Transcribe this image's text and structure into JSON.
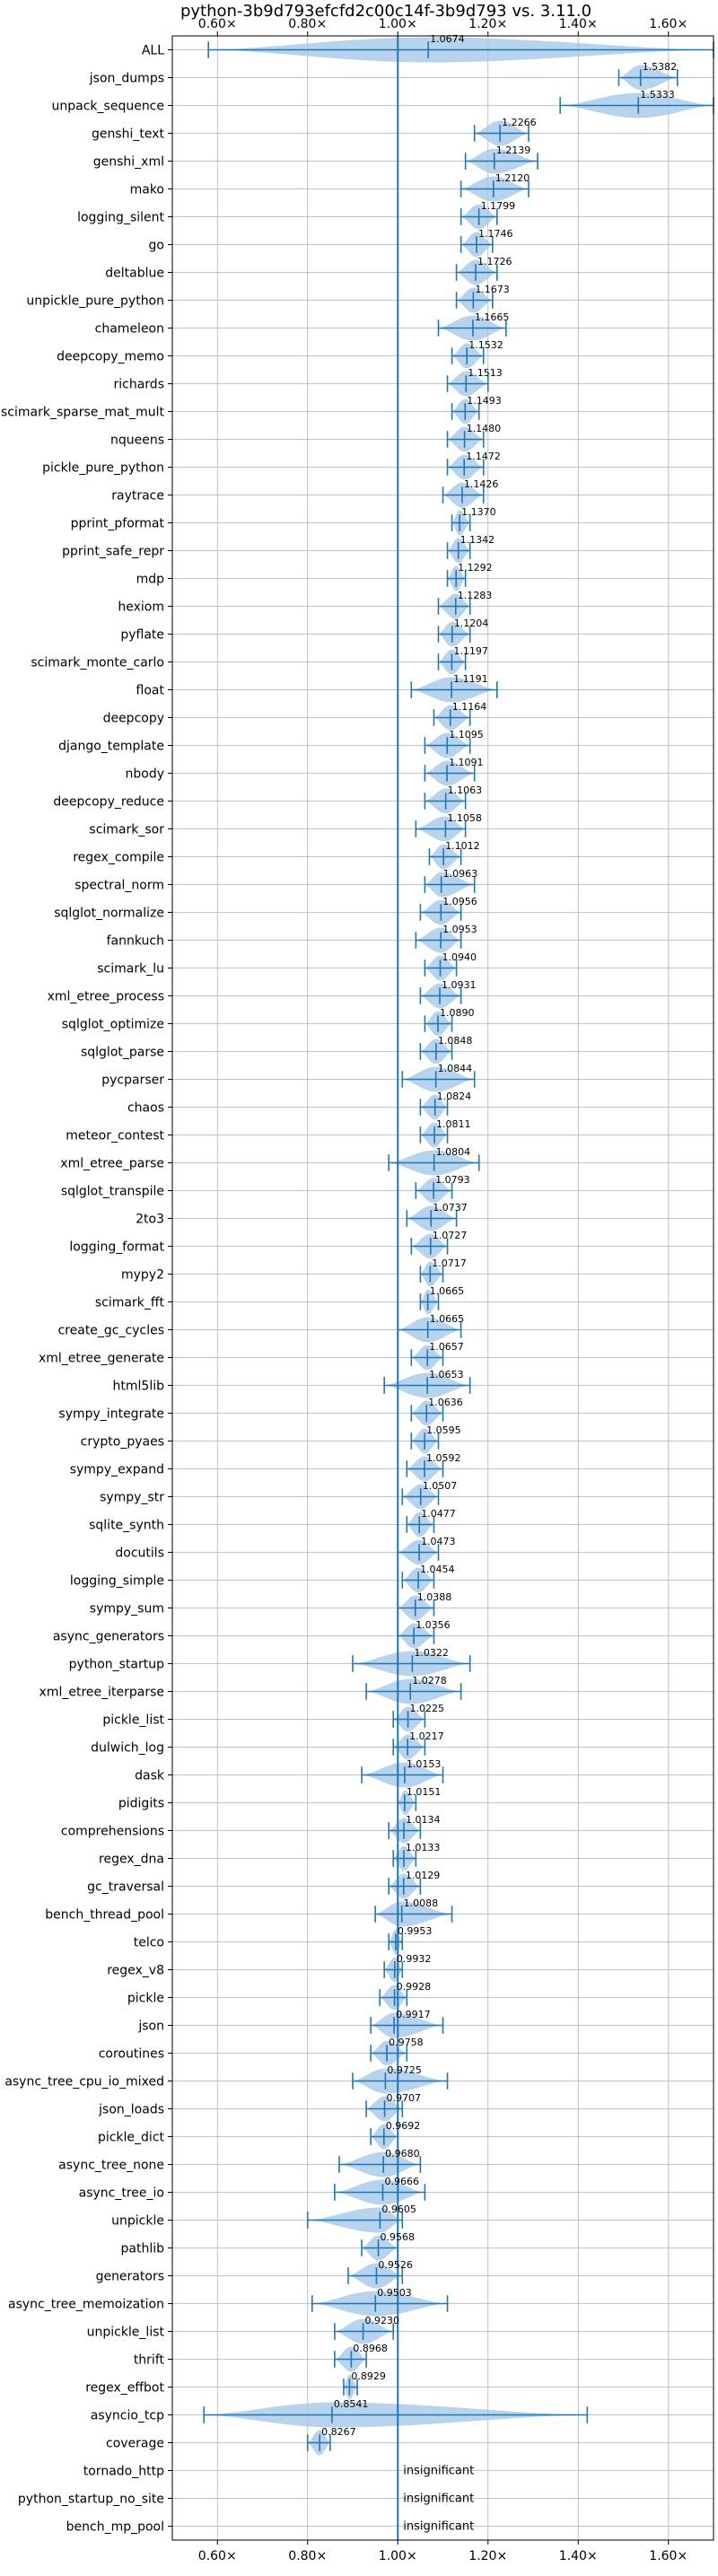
{
  "chart_data": {
    "type": "violin",
    "title": "python-3b9d793efcfd2c00c14f-3b9d793 vs. 3.11.0",
    "xlabel": "",
    "ylabel": "",
    "xlim": [
      0.5,
      1.7
    ],
    "x_ticks": [
      0.6,
      0.8,
      1.0,
      1.2,
      1.4,
      1.6
    ],
    "x_tick_labels": [
      "0.60×",
      "0.80×",
      "1.00×",
      "1.20×",
      "1.40×",
      "1.60×"
    ],
    "reference_line": 1.0,
    "grid": true,
    "color": "#1f77b4",
    "fill_color": "#a6c8e8",
    "benchmarks": [
      {
        "name": "ALL",
        "mean": 1.0674,
        "label": "1.0674",
        "min": 0.58,
        "max": 1.7
      },
      {
        "name": "json_dumps",
        "mean": 1.5382,
        "label": "1.5382",
        "min": 1.49,
        "max": 1.62
      },
      {
        "name": "unpack_sequence",
        "mean": 1.5333,
        "label": "1.5333",
        "min": 1.36,
        "max": 1.7
      },
      {
        "name": "genshi_text",
        "mean": 1.2266,
        "label": "1.2266",
        "min": 1.17,
        "max": 1.29
      },
      {
        "name": "genshi_xml",
        "mean": 1.2139,
        "label": "1.2139",
        "min": 1.15,
        "max": 1.31
      },
      {
        "name": "mako",
        "mean": 1.212,
        "label": "1.2120",
        "min": 1.14,
        "max": 1.29
      },
      {
        "name": "logging_silent",
        "mean": 1.1799,
        "label": "1.1799",
        "min": 1.14,
        "max": 1.22
      },
      {
        "name": "go",
        "mean": 1.1746,
        "label": "1.1746",
        "min": 1.14,
        "max": 1.21
      },
      {
        "name": "deltablue",
        "mean": 1.1726,
        "label": "1.1726",
        "min": 1.13,
        "max": 1.22
      },
      {
        "name": "unpickle_pure_python",
        "mean": 1.1673,
        "label": "1.1673",
        "min": 1.13,
        "max": 1.21
      },
      {
        "name": "chameleon",
        "mean": 1.1665,
        "label": "1.1665",
        "min": 1.09,
        "max": 1.24
      },
      {
        "name": "deepcopy_memo",
        "mean": 1.1532,
        "label": "1.1532",
        "min": 1.12,
        "max": 1.19
      },
      {
        "name": "richards",
        "mean": 1.1513,
        "label": "1.1513",
        "min": 1.11,
        "max": 1.2
      },
      {
        "name": "scimark_sparse_mat_mult",
        "mean": 1.1493,
        "label": "1.1493",
        "min": 1.12,
        "max": 1.18
      },
      {
        "name": "nqueens",
        "mean": 1.148,
        "label": "1.1480",
        "min": 1.11,
        "max": 1.19
      },
      {
        "name": "pickle_pure_python",
        "mean": 1.1472,
        "label": "1.1472",
        "min": 1.11,
        "max": 1.19
      },
      {
        "name": "raytrace",
        "mean": 1.1426,
        "label": "1.1426",
        "min": 1.1,
        "max": 1.19
      },
      {
        "name": "pprint_pformat",
        "mean": 1.137,
        "label": "1.1370",
        "min": 1.12,
        "max": 1.16
      },
      {
        "name": "pprint_safe_repr",
        "mean": 1.1342,
        "label": "1.1342",
        "min": 1.11,
        "max": 1.16
      },
      {
        "name": "mdp",
        "mean": 1.1292,
        "label": "1.1292",
        "min": 1.11,
        "max": 1.15
      },
      {
        "name": "hexiom",
        "mean": 1.1283,
        "label": "1.1283",
        "min": 1.09,
        "max": 1.16
      },
      {
        "name": "pyflate",
        "mean": 1.1204,
        "label": "1.1204",
        "min": 1.09,
        "max": 1.16
      },
      {
        "name": "scimark_monte_carlo",
        "mean": 1.1197,
        "label": "1.1197",
        "min": 1.09,
        "max": 1.15
      },
      {
        "name": "float",
        "mean": 1.1191,
        "label": "1.1191",
        "min": 1.03,
        "max": 1.22
      },
      {
        "name": "deepcopy",
        "mean": 1.1164,
        "label": "1.1164",
        "min": 1.08,
        "max": 1.16
      },
      {
        "name": "django_template",
        "mean": 1.1095,
        "label": "1.1095",
        "min": 1.06,
        "max": 1.16
      },
      {
        "name": "nbody",
        "mean": 1.1091,
        "label": "1.1091",
        "min": 1.06,
        "max": 1.17
      },
      {
        "name": "deepcopy_reduce",
        "mean": 1.1063,
        "label": "1.1063",
        "min": 1.06,
        "max": 1.15
      },
      {
        "name": "scimark_sor",
        "mean": 1.1058,
        "label": "1.1058",
        "min": 1.04,
        "max": 1.15
      },
      {
        "name": "regex_compile",
        "mean": 1.1012,
        "label": "1.1012",
        "min": 1.07,
        "max": 1.14
      },
      {
        "name": "spectral_norm",
        "mean": 1.0963,
        "label": "1.0963",
        "min": 1.06,
        "max": 1.17
      },
      {
        "name": "sqlglot_normalize",
        "mean": 1.0956,
        "label": "1.0956",
        "min": 1.05,
        "max": 1.14
      },
      {
        "name": "fannkuch",
        "mean": 1.0953,
        "label": "1.0953",
        "min": 1.04,
        "max": 1.14
      },
      {
        "name": "scimark_lu",
        "mean": 1.094,
        "label": "1.0940",
        "min": 1.06,
        "max": 1.13
      },
      {
        "name": "xml_etree_process",
        "mean": 1.0931,
        "label": "1.0931",
        "min": 1.05,
        "max": 1.14
      },
      {
        "name": "sqlglot_optimize",
        "mean": 1.089,
        "label": "1.0890",
        "min": 1.06,
        "max": 1.12
      },
      {
        "name": "sqlglot_parse",
        "mean": 1.0848,
        "label": "1.0848",
        "min": 1.05,
        "max": 1.12
      },
      {
        "name": "pycparser",
        "mean": 1.0844,
        "label": "1.0844",
        "min": 1.01,
        "max": 1.17
      },
      {
        "name": "chaos",
        "mean": 1.0824,
        "label": "1.0824",
        "min": 1.05,
        "max": 1.11
      },
      {
        "name": "meteor_contest",
        "mean": 1.0811,
        "label": "1.0811",
        "min": 1.05,
        "max": 1.11
      },
      {
        "name": "xml_etree_parse",
        "mean": 1.0804,
        "label": "1.0804",
        "min": 0.98,
        "max": 1.18
      },
      {
        "name": "sqlglot_transpile",
        "mean": 1.0793,
        "label": "1.0793",
        "min": 1.04,
        "max": 1.12
      },
      {
        "name": "2to3",
        "mean": 1.0737,
        "label": "1.0737",
        "min": 1.02,
        "max": 1.13
      },
      {
        "name": "logging_format",
        "mean": 1.0727,
        "label": "1.0727",
        "min": 1.03,
        "max": 1.11
      },
      {
        "name": "mypy2",
        "mean": 1.0717,
        "label": "1.0717",
        "min": 1.05,
        "max": 1.1
      },
      {
        "name": "scimark_fft",
        "mean": 1.0665,
        "label": "1.0665",
        "min": 1.05,
        "max": 1.09
      },
      {
        "name": "create_gc_cycles",
        "mean": 1.0665,
        "label": "1.0665",
        "min": 1.0,
        "max": 1.14
      },
      {
        "name": "xml_etree_generate",
        "mean": 1.0657,
        "label": "1.0657",
        "min": 1.03,
        "max": 1.1
      },
      {
        "name": "html5lib",
        "mean": 1.0653,
        "label": "1.0653",
        "min": 0.97,
        "max": 1.16
      },
      {
        "name": "sympy_integrate",
        "mean": 1.0636,
        "label": "1.0636",
        "min": 1.03,
        "max": 1.1
      },
      {
        "name": "crypto_pyaes",
        "mean": 1.0595,
        "label": "1.0595",
        "min": 1.03,
        "max": 1.09
      },
      {
        "name": "sympy_expand",
        "mean": 1.0592,
        "label": "1.0592",
        "min": 1.02,
        "max": 1.1
      },
      {
        "name": "sympy_str",
        "mean": 1.0507,
        "label": "1.0507",
        "min": 1.01,
        "max": 1.09
      },
      {
        "name": "sqlite_synth",
        "mean": 1.0477,
        "label": "1.0477",
        "min": 1.02,
        "max": 1.08
      },
      {
        "name": "docutils",
        "mean": 1.0473,
        "label": "1.0473",
        "min": 1.0,
        "max": 1.09
      },
      {
        "name": "logging_simple",
        "mean": 1.0454,
        "label": "1.0454",
        "min": 1.01,
        "max": 1.08
      },
      {
        "name": "sympy_sum",
        "mean": 1.0388,
        "label": "1.0388",
        "min": 1.0,
        "max": 1.08
      },
      {
        "name": "async_generators",
        "mean": 1.0356,
        "label": "1.0356",
        "min": 1.0,
        "max": 1.08
      },
      {
        "name": "python_startup",
        "mean": 1.0322,
        "label": "1.0322",
        "min": 0.9,
        "max": 1.16
      },
      {
        "name": "xml_etree_iterparse",
        "mean": 1.0278,
        "label": "1.0278",
        "min": 0.93,
        "max": 1.14
      },
      {
        "name": "pickle_list",
        "mean": 1.0225,
        "label": "1.0225",
        "min": 0.99,
        "max": 1.06
      },
      {
        "name": "dulwich_log",
        "mean": 1.0217,
        "label": "1.0217",
        "min": 0.99,
        "max": 1.06
      },
      {
        "name": "dask",
        "mean": 1.0153,
        "label": "1.0153",
        "min": 0.92,
        "max": 1.1
      },
      {
        "name": "pidigits",
        "mean": 1.0151,
        "label": "1.0151",
        "min": 1.0,
        "max": 1.04
      },
      {
        "name": "comprehensions",
        "mean": 1.0134,
        "label": "1.0134",
        "min": 0.98,
        "max": 1.05
      },
      {
        "name": "regex_dna",
        "mean": 1.0133,
        "label": "1.0133",
        "min": 0.99,
        "max": 1.04
      },
      {
        "name": "gc_traversal",
        "mean": 1.0129,
        "label": "1.0129",
        "min": 0.98,
        "max": 1.05
      },
      {
        "name": "bench_thread_pool",
        "mean": 1.0088,
        "label": "1.0088",
        "min": 0.95,
        "max": 1.12
      },
      {
        "name": "telco",
        "mean": 0.9953,
        "label": "0.9953",
        "min": 0.98,
        "max": 1.01
      },
      {
        "name": "regex_v8",
        "mean": 0.9932,
        "label": "0.9932",
        "min": 0.97,
        "max": 1.01
      },
      {
        "name": "pickle",
        "mean": 0.9928,
        "label": "0.9928",
        "min": 0.96,
        "max": 1.02
      },
      {
        "name": "json",
        "mean": 0.9917,
        "label": "0.9917",
        "min": 0.94,
        "max": 1.1
      },
      {
        "name": "coroutines",
        "mean": 0.9758,
        "label": "0.9758",
        "min": 0.94,
        "max": 1.02
      },
      {
        "name": "async_tree_cpu_io_mixed",
        "mean": 0.9725,
        "label": "0.9725",
        "min": 0.9,
        "max": 1.11
      },
      {
        "name": "json_loads",
        "mean": 0.9707,
        "label": "0.9707",
        "min": 0.93,
        "max": 1.01
      },
      {
        "name": "pickle_dict",
        "mean": 0.9692,
        "label": "0.9692",
        "min": 0.94,
        "max": 1.0
      },
      {
        "name": "async_tree_none",
        "mean": 0.968,
        "label": "0.9680",
        "min": 0.87,
        "max": 1.05
      },
      {
        "name": "async_tree_io",
        "mean": 0.9666,
        "label": "0.9666",
        "min": 0.86,
        "max": 1.06
      },
      {
        "name": "unpickle",
        "mean": 0.9605,
        "label": "0.9605",
        "min": 0.8,
        "max": 1.01
      },
      {
        "name": "pathlib",
        "mean": 0.9568,
        "label": "0.9568",
        "min": 0.92,
        "max": 1.0
      },
      {
        "name": "generators",
        "mean": 0.9526,
        "label": "0.9526",
        "min": 0.89,
        "max": 1.01
      },
      {
        "name": "async_tree_memoization",
        "mean": 0.9503,
        "label": "0.9503",
        "min": 0.81,
        "max": 1.11
      },
      {
        "name": "unpickle_list",
        "mean": 0.923,
        "label": "0.9230",
        "min": 0.86,
        "max": 0.99
      },
      {
        "name": "thrift",
        "mean": 0.8968,
        "label": "0.8968",
        "min": 0.86,
        "max": 0.93
      },
      {
        "name": "regex_effbot",
        "mean": 0.8929,
        "label": "0.8929",
        "min": 0.88,
        "max": 0.91
      },
      {
        "name": "asyncio_tcp",
        "mean": 0.8541,
        "label": "0.8541",
        "min": 0.57,
        "max": 1.42
      },
      {
        "name": "coverage",
        "mean": 0.8267,
        "label": "0.8267",
        "min": 0.8,
        "max": 0.85
      },
      {
        "name": "tornado_http",
        "mean": null,
        "label": "insignificant"
      },
      {
        "name": "python_startup_no_site",
        "mean": null,
        "label": "insignificant"
      },
      {
        "name": "bench_mp_pool",
        "mean": null,
        "label": "insignificant"
      }
    ]
  }
}
